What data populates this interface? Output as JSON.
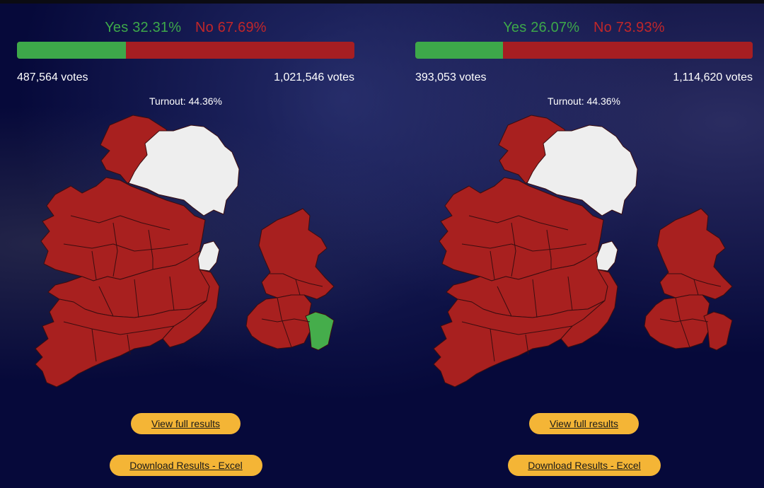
{
  "colors": {
    "yes": "#3da84a",
    "no": "#c0262a",
    "region_yes": "#45ad4b",
    "region_no": "#a8201f",
    "not_voting": "#eeeeee",
    "button": "#f4b536",
    "background": "#06093a"
  },
  "panels": [
    {
      "yes_label": "Yes 32.31%",
      "no_label": "No 67.69%",
      "yes_fraction": 0.3231,
      "yes_votes": "487,564 votes",
      "no_votes": "1,021,546 votes",
      "turnout": "Turnout: 44.36%",
      "green_constituency": true,
      "view_results_label": "View full results",
      "download_label": "Download Results - Excel"
    },
    {
      "yes_label": "Yes 26.07%",
      "no_label": "No 73.93%",
      "yes_fraction": 0.2607,
      "yes_votes": "393,053 votes",
      "no_votes": "1,114,620 votes",
      "turnout": "Turnout: 44.36%",
      "green_constituency": false,
      "view_results_label": "View full results",
      "download_label": "Download Results - Excel"
    }
  ]
}
